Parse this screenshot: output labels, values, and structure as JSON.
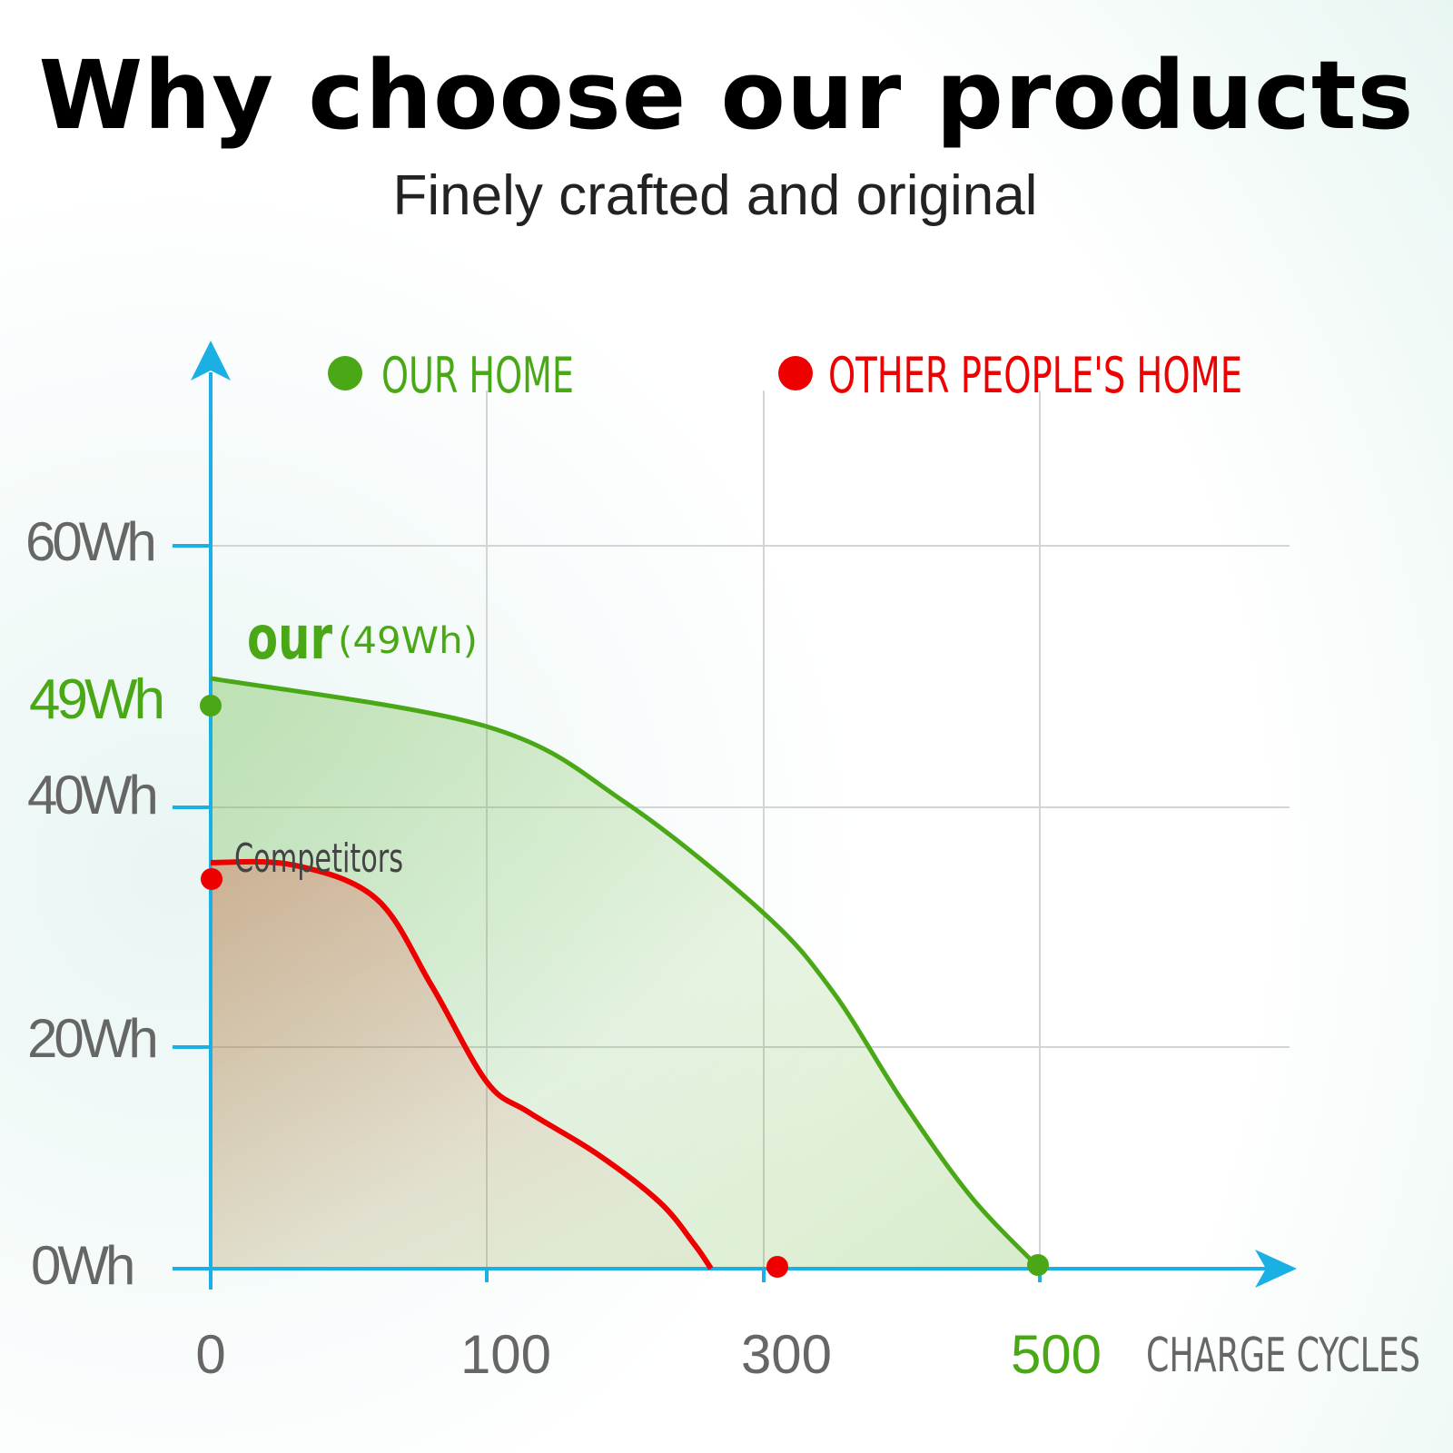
{
  "header": {
    "title": "Why choose our products",
    "subtitle": "Finely crafted and original"
  },
  "colors": {
    "axis": "#1ab0e4",
    "grid": "#d4d4d4",
    "ours": "#4aa817",
    "competitor": "#ee0000",
    "tick_text": "#666666"
  },
  "chart_data": {
    "type": "area",
    "title": "Why choose our products",
    "subtitle": "Finely crafted and original",
    "xlabel": "CHARGE CYCLES",
    "ylabel": "",
    "x_ticks": [
      "0",
      "100",
      "300",
      "500"
    ],
    "y_ticks": [
      "60Wh",
      "49Wh",
      "40Wh",
      "20Wh",
      "0Wh"
    ],
    "legend": [
      {
        "label": "OUR HOME",
        "color": "#4aa817"
      },
      {
        "label": "OTHER PEOPLE'S HOME",
        "color": "#ee0000"
      }
    ],
    "series": [
      {
        "name": "OUR HOME",
        "label": "our",
        "label_value": "(49Wh)",
        "points": [
          [
            0,
            49
          ],
          [
            100,
            45
          ],
          [
            200,
            38.7
          ],
          [
            300,
            29.5
          ],
          [
            350,
            23
          ],
          [
            400,
            14
          ],
          [
            450,
            6
          ],
          [
            500,
            0
          ]
        ]
      },
      {
        "name": "OTHER PEOPLE'S HOME",
        "label": "Competitors",
        "points": [
          [
            0,
            33.7
          ],
          [
            30,
            33.5
          ],
          [
            60,
            30.7
          ],
          [
            80,
            23.5
          ],
          [
            100,
            15.5
          ],
          [
            130,
            13
          ],
          [
            180,
            9.5
          ],
          [
            225,
            5.5
          ],
          [
            250,
            2
          ],
          [
            262,
            0
          ]
        ]
      }
    ]
  }
}
